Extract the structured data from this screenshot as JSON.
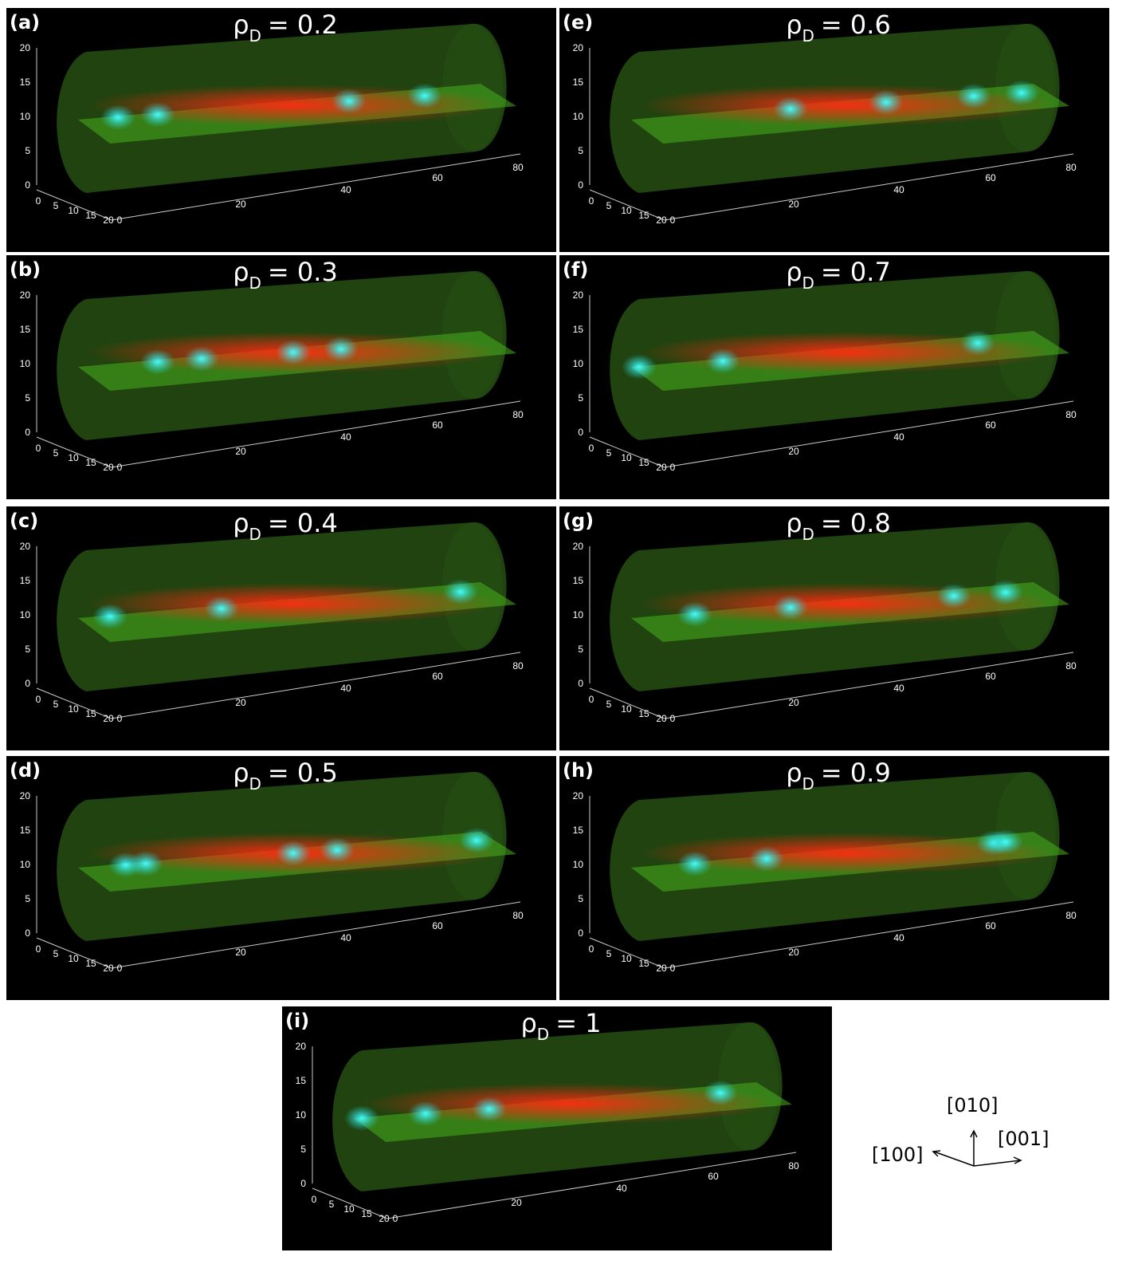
{
  "panels": [
    {
      "label": "(a)",
      "title": {
        "symbol": "ρ",
        "subscript": "D",
        "rest": "= 0.2"
      }
    },
    {
      "label": "(b)",
      "title": {
        "symbol": "ρ",
        "subscript": "D",
        "rest": "= 0.3"
      }
    },
    {
      "label": "(c)",
      "title": {
        "symbol": "ρ",
        "subscript": "D",
        "rest": "= 0.4"
      }
    },
    {
      "label": "(d)",
      "title": {
        "symbol": "ρ",
        "subscript": "D",
        "rest": "= 0.5"
      }
    },
    {
      "label": "(e)",
      "title": {
        "symbol": "ρ",
        "subscript": "D",
        "rest": "= 0.6"
      }
    },
    {
      "label": "(f)",
      "title": {
        "symbol": "ρ",
        "subscript": "D",
        "rest": "= 0.7"
      }
    },
    {
      "label": "(g)",
      "title": {
        "symbol": "ρ",
        "subscript": "D",
        "rest": "= 0.8"
      }
    },
    {
      "label": "(h)",
      "title": {
        "symbol": "ρ",
        "subscript": "D",
        "rest": "= 0.9"
      }
    },
    {
      "label": "(i)",
      "title": {
        "symbol": "ρ",
        "subscript": "D",
        "rest": "= 1"
      }
    }
  ],
  "axes": {
    "vertical_ticks": [
      "0",
      "5",
      "10",
      "15",
      "20"
    ],
    "depth_ticks": [
      "0",
      "5",
      "10",
      "15",
      "20"
    ],
    "length_ticks": [
      "0",
      "20",
      "40",
      "60",
      "80"
    ]
  },
  "orientation": {
    "up": "[010]",
    "right": "[001]",
    "left": "[100]"
  }
}
